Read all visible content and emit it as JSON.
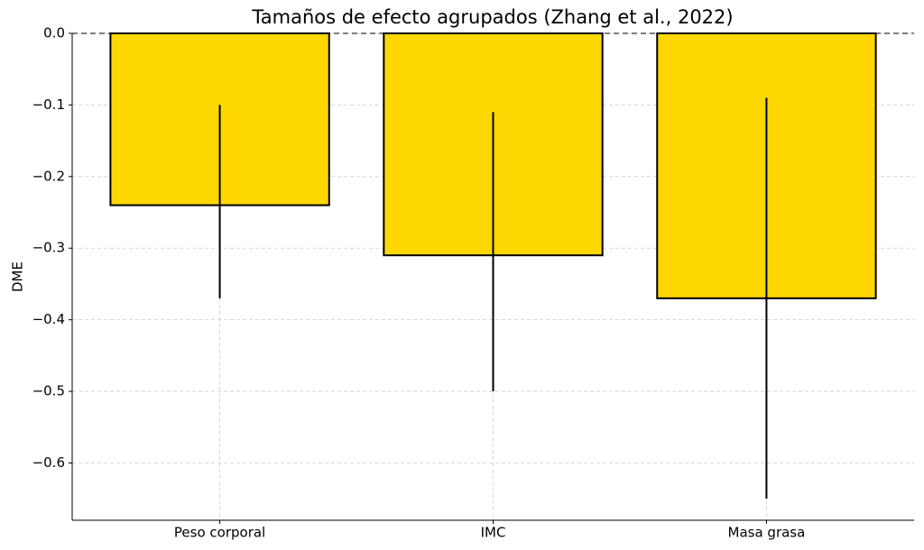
{
  "chart_data": {
    "type": "bar",
    "title": "Tamaños de efecto agrupados (Zhang et al., 2022)",
    "y_label": "DME",
    "categories": [
      "Peso corporal",
      "IMC",
      "Masa grasa"
    ],
    "values": [
      -0.24,
      -0.31,
      -0.37
    ],
    "ci_upper": [
      -0.1,
      -0.11,
      -0.09
    ],
    "ci_lower": [
      -0.37,
      -0.5,
      -0.65
    ],
    "color": "#ffd700",
    "ylim": [
      -0.68,
      0
    ],
    "yticks": [
      {
        "value": 0,
        "label": "0.0"
      },
      {
        "value": -0.1,
        "label": "−0.1"
      },
      {
        "value": -0.2,
        "label": "−0.2"
      },
      {
        "value": -0.3,
        "label": "−0.3"
      },
      {
        "value": -0.4,
        "label": "−0.4"
      },
      {
        "value": -0.5,
        "label": "−0.5"
      },
      {
        "value": -0.6,
        "label": "−0.6"
      }
    ],
    "grid": true
  }
}
